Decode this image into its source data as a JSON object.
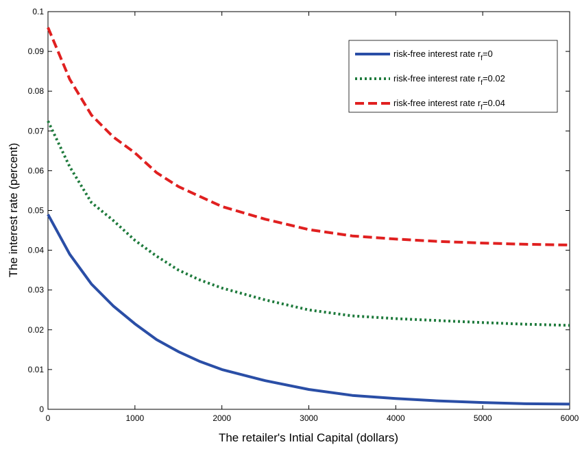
{
  "chart_data": {
    "type": "line",
    "title": "",
    "xlabel": "The retailer's Intial Capital (dollars)",
    "ylabel": "The interest rate (percent)",
    "xlim": [
      0,
      6000
    ],
    "ylim": [
      0,
      0.1
    ],
    "xticks": [
      "0",
      "1000",
      "2000",
      "3000",
      "4000",
      "5000",
      "6000"
    ],
    "yticks": [
      "0",
      "0.01",
      "0.02",
      "0.03",
      "0.04",
      "0.05",
      "0.06",
      "0.07",
      "0.08",
      "0.09",
      "0.1"
    ],
    "grid": false,
    "legend_position": "top-right",
    "x": [
      0,
      250,
      500,
      750,
      1000,
      1250,
      1500,
      1750,
      2000,
      2500,
      3000,
      3500,
      4000,
      4500,
      5000,
      5500,
      6000
    ],
    "series": [
      {
        "name_prefix": "risk-free interest rate r",
        "name_sub": "f",
        "name_suffix": "=0",
        "color": "#2a4ea6",
        "style": "solid",
        "values": [
          0.049,
          0.039,
          0.0315,
          0.026,
          0.0215,
          0.0175,
          0.0145,
          0.012,
          0.01,
          0.0072,
          0.005,
          0.0035,
          0.0027,
          0.0021,
          0.0017,
          0.0014,
          0.0013
        ]
      },
      {
        "name_prefix": "risk-free interest rate r",
        "name_sub": "f",
        "name_suffix": "=0.02",
        "color": "#1e7a3c",
        "style": "dotted",
        "values": [
          0.0725,
          0.061,
          0.052,
          0.0475,
          0.0425,
          0.0385,
          0.035,
          0.0325,
          0.0305,
          0.0275,
          0.025,
          0.0235,
          0.0228,
          0.0223,
          0.0218,
          0.0214,
          0.0211
        ]
      },
      {
        "name_prefix": "risk-free interest rate r",
        "name_sub": "f",
        "name_suffix": "=0.04",
        "color": "#e02020",
        "style": "dashed",
        "values": [
          0.096,
          0.083,
          0.074,
          0.0685,
          0.0645,
          0.0595,
          0.056,
          0.0535,
          0.051,
          0.0478,
          0.0452,
          0.0436,
          0.0428,
          0.0422,
          0.0418,
          0.0415,
          0.0413
        ]
      }
    ]
  }
}
